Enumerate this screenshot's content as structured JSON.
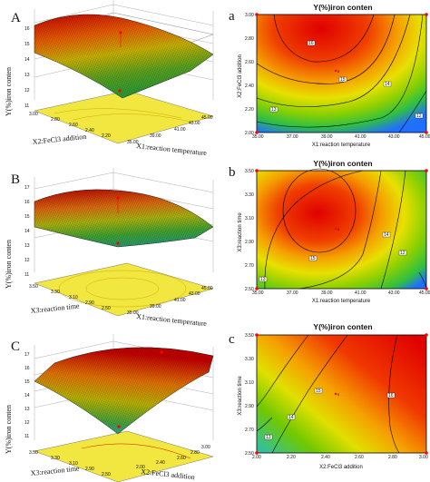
{
  "figure": {
    "panels": [
      {
        "id": "A",
        "surface_letter": "A",
        "contour_letter": "a",
        "contour_title": "Y(%)iron conten",
        "z_label": "Y(%)iron conten",
        "x_label": "X1:reaction temperature",
        "y_label": "X2:FeCl3 addition",
        "contour_x_label": "X1:reaction temperature",
        "contour_y_label": "X2:FeCl3 addition",
        "z_ticks": [
          "16",
          "15",
          "14",
          "13",
          "12",
          "11"
        ],
        "x_ticks": [
          "35.00",
          "37.00",
          "39.00",
          "41.00",
          "43.00",
          "45.00"
        ],
        "y_ticks": [
          "2.00",
          "2.20",
          "2.40",
          "2.60",
          "2.80",
          "3.00"
        ],
        "contour_levels": [
          "16",
          "15",
          "14",
          "13",
          "12"
        ]
      },
      {
        "id": "B",
        "surface_letter": "B",
        "contour_letter": "b",
        "contour_title": "Y(%)iron conten",
        "z_label": "Y(%)iron conten",
        "x_label": "X1:reaction temperature",
        "y_label": "X3:reaction time",
        "contour_x_label": "X1:reaction temperature",
        "contour_y_label": "X3:reaction time",
        "z_ticks": [
          "17",
          "16",
          "15",
          "14",
          "13",
          "12",
          "11"
        ],
        "x_ticks": [
          "35.00",
          "37.00",
          "39.00",
          "41.00",
          "43.00",
          "45.00"
        ],
        "y_ticks": [
          "2.50",
          "2.70",
          "2.90",
          "3.10",
          "3.30",
          "3.50"
        ],
        "contour_levels": [
          "15",
          "14",
          "13",
          "12"
        ]
      },
      {
        "id": "C",
        "surface_letter": "C",
        "contour_letter": "c",
        "contour_title": "Y(%)iron conten",
        "z_label": "Y(%)iron conten",
        "x_label": "X2:FeCl3 addition",
        "y_label": "X3:reaction time",
        "contour_x_label": "X2:FeCl3 addition",
        "contour_y_label": "X3:reaction time",
        "z_ticks": [
          "17",
          "16",
          "15",
          "14",
          "13",
          "12",
          "11"
        ],
        "x_ticks": [
          "2.00",
          "2.20",
          "2.40",
          "2.60",
          "2.80",
          "3.00"
        ],
        "y_ticks": [
          "2.50",
          "2.70",
          "2.90",
          "3.10",
          "3.30",
          "3.50"
        ],
        "contour_levels": [
          "16",
          "15",
          "14",
          "13"
        ]
      }
    ],
    "colors": {
      "high": "#e00000",
      "mid": "#f0c000",
      "low": "#30a030",
      "min": "#2060ff",
      "floor": "#f2e640"
    }
  },
  "chart_data": [
    {
      "type": "surface",
      "panel": "A",
      "z_range": [
        11,
        16
      ],
      "x_range": [
        35.0,
        45.0
      ],
      "y_range": [
        2.0,
        3.0
      ]
    },
    {
      "type": "surface",
      "panel": "B",
      "z_range": [
        11,
        17
      ],
      "x_range": [
        35.0,
        45.0
      ],
      "y_range": [
        2.5,
        3.5
      ]
    },
    {
      "type": "surface",
      "panel": "C",
      "z_range": [
        11,
        17
      ],
      "x_range": [
        2.0,
        3.0
      ],
      "y_range": [
        2.5,
        3.5
      ]
    }
  ]
}
